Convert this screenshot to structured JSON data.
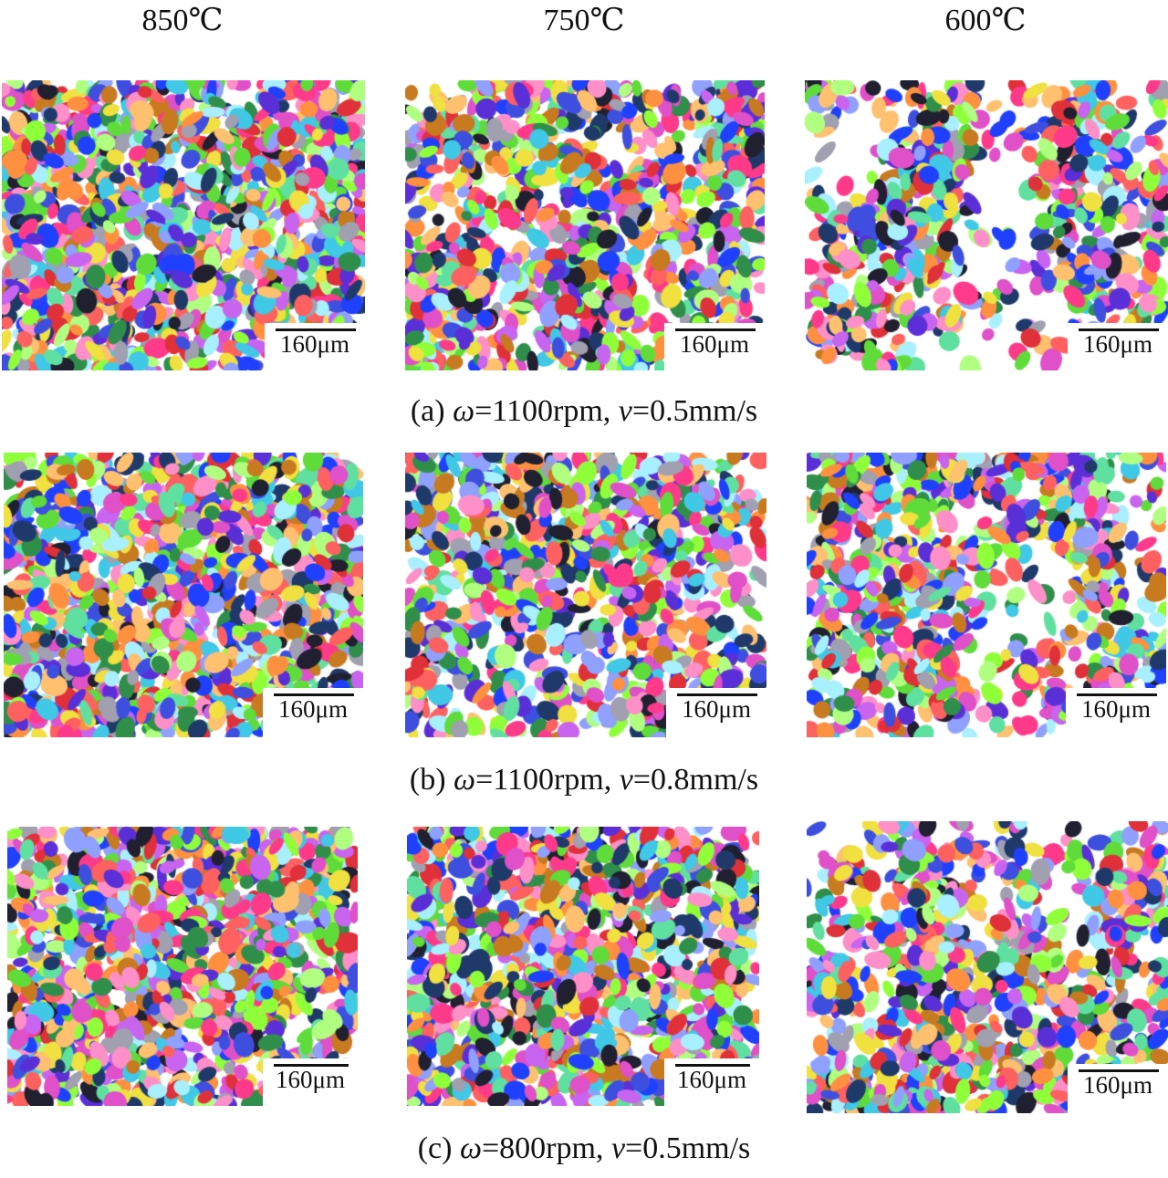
{
  "columns": [
    "850℃",
    "750℃",
    "600℃"
  ],
  "scale_bar_label": "160μm",
  "rows": [
    {
      "prefix": "(a)",
      "omega_sym": "ω",
      "omega_val": "=1100rpm, ",
      "v_sym": "v",
      "v_val": "=0.5mm/s"
    },
    {
      "prefix": "(b)",
      "omega_sym": "ω",
      "omega_val": "=1100rpm, ",
      "v_sym": "v",
      "v_val": "=0.8mm/s"
    },
    {
      "prefix": "(c) ",
      "omega_sym": "ω",
      "omega_val": "=800rpm, ",
      "v_sym": "v",
      "v_val": "=0.5mm/s"
    }
  ],
  "grain_colors": [
    "#3e4fe0",
    "#5b2fd8",
    "#8fff3a",
    "#5fdc3a",
    "#ff3a8a",
    "#e0303a",
    "#ff8fc8",
    "#c864f0",
    "#40c8e6",
    "#a8f0ff",
    "#f0e040",
    "#ffc070",
    "#c87a20",
    "#2f8f4a",
    "#1f3a6a",
    "#a0a0b0",
    "#ff6060",
    "#e050c8",
    "#60e0a0",
    "#2040ff",
    "#b0ff80",
    "#ff9040",
    "#90a0ff",
    "#202030"
  ]
}
